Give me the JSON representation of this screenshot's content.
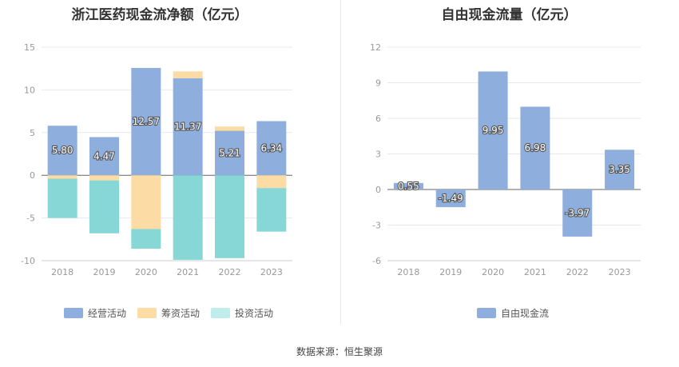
{
  "source": "数据来源：恒生聚源",
  "colors": {
    "operating": "#8eaedd",
    "financing": "#fddba5",
    "investing": "#86d7d6",
    "investing_legend": "#c0eceb",
    "free_cash": "#8eaedd",
    "grid": "#e6e9f2",
    "axis_text": "#999999"
  },
  "chart_data": [
    {
      "type": "bar",
      "stacked": true,
      "title": "浙江医药现金流净额（亿元）",
      "categories": [
        "2018",
        "2019",
        "2020",
        "2021",
        "2022",
        "2023"
      ],
      "ylim": [
        -10,
        15
      ],
      "yticks": [
        15,
        10,
        5,
        0,
        -5,
        -10
      ],
      "grid": true,
      "legend_position": "bottom",
      "series": [
        {
          "name": "经营活动",
          "key": "operating",
          "values": [
            5.8,
            4.47,
            12.57,
            11.37,
            5.21,
            6.34
          ],
          "labels": [
            "5.80",
            "4.47",
            "12.57",
            "11.37",
            "5.21",
            "6.34"
          ]
        },
        {
          "name": "筹资活动",
          "key": "financing",
          "values": [
            -0.4,
            -0.6,
            -6.3,
            0.8,
            0.5,
            -1.5
          ]
        },
        {
          "name": "投资活动",
          "key": "investing",
          "values": [
            -4.6,
            -6.2,
            -2.3,
            -9.9,
            -9.7,
            -5.1
          ]
        }
      ]
    },
    {
      "type": "bar",
      "title": "自由现金流量（亿元）",
      "categories": [
        "2018",
        "2019",
        "2020",
        "2021",
        "2022",
        "2023"
      ],
      "ylim": [
        -6,
        12
      ],
      "yticks": [
        12,
        9,
        6,
        3,
        0,
        -3,
        -6
      ],
      "grid": true,
      "legend_position": "bottom",
      "series": [
        {
          "name": "自由现金流",
          "key": "free_cash",
          "values": [
            0.55,
            -1.49,
            9.95,
            6.98,
            -3.97,
            3.35
          ],
          "labels": [
            "0.55",
            "-1.49",
            "9.95",
            "6.98",
            "-3.97",
            "3.35"
          ]
        }
      ]
    }
  ]
}
